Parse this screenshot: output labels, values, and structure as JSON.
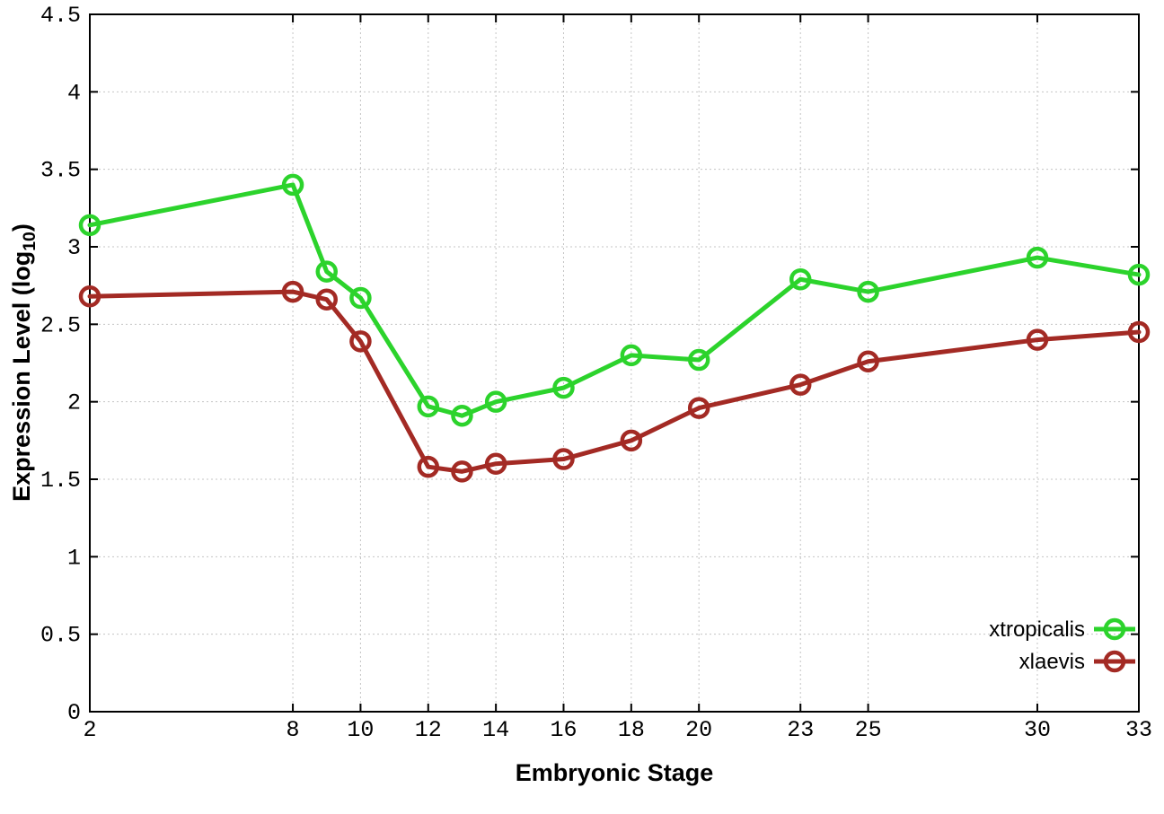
{
  "chart_data": {
    "type": "line",
    "title": "",
    "xlabel": "Embryonic Stage",
    "ylabel": "Expression Level (log10)",
    "ylabel_parts": {
      "pre": "Expression Level (log",
      "sub": "10",
      "post": ")"
    },
    "x": [
      2,
      8,
      9,
      10,
      12,
      13,
      14,
      16,
      18,
      20,
      23,
      25,
      30,
      33
    ],
    "series": [
      {
        "name": "xtropicalis",
        "color": "#2cd32c",
        "values": [
          3.14,
          3.4,
          2.84,
          2.67,
          1.97,
          1.91,
          2.0,
          2.09,
          2.3,
          2.27,
          2.79,
          2.71,
          2.93,
          2.82
        ]
      },
      {
        "name": "xlaevis",
        "color": "#a32a24",
        "values": [
          2.68,
          2.71,
          2.66,
          2.39,
          1.58,
          1.55,
          1.6,
          1.63,
          1.75,
          1.96,
          2.11,
          2.26,
          2.4,
          2.45
        ]
      }
    ],
    "xticks": {
      "values": [
        2,
        8,
        10,
        12,
        14,
        16,
        18,
        20,
        23,
        25,
        30,
        33
      ],
      "labels": [
        "2",
        "8",
        "10",
        "12",
        "14",
        "16",
        "18",
        "20",
        "23",
        "25",
        "30",
        "33"
      ]
    },
    "yticks": {
      "values": [
        0,
        0.5,
        1,
        1.5,
        2,
        2.5,
        3,
        3.5,
        4,
        4.5
      ],
      "labels": [
        "0",
        "0.5",
        "1",
        "1.5",
        "2",
        "2.5",
        "3",
        "3.5",
        "4",
        "4.5"
      ]
    },
    "xlim": [
      2,
      33
    ],
    "ylim": [
      0,
      4.5
    ],
    "grid": "dotted",
    "marker": "open-circle",
    "legend": {
      "position": "bottom-right",
      "entries": [
        "xtropicalis",
        "xlaevis"
      ]
    }
  },
  "colors": {
    "background": "#ffffff",
    "border": "#000000",
    "grid": "#c4c4c4",
    "xtropicalis": "#2cd32c",
    "xlaevis": "#a32a24"
  }
}
